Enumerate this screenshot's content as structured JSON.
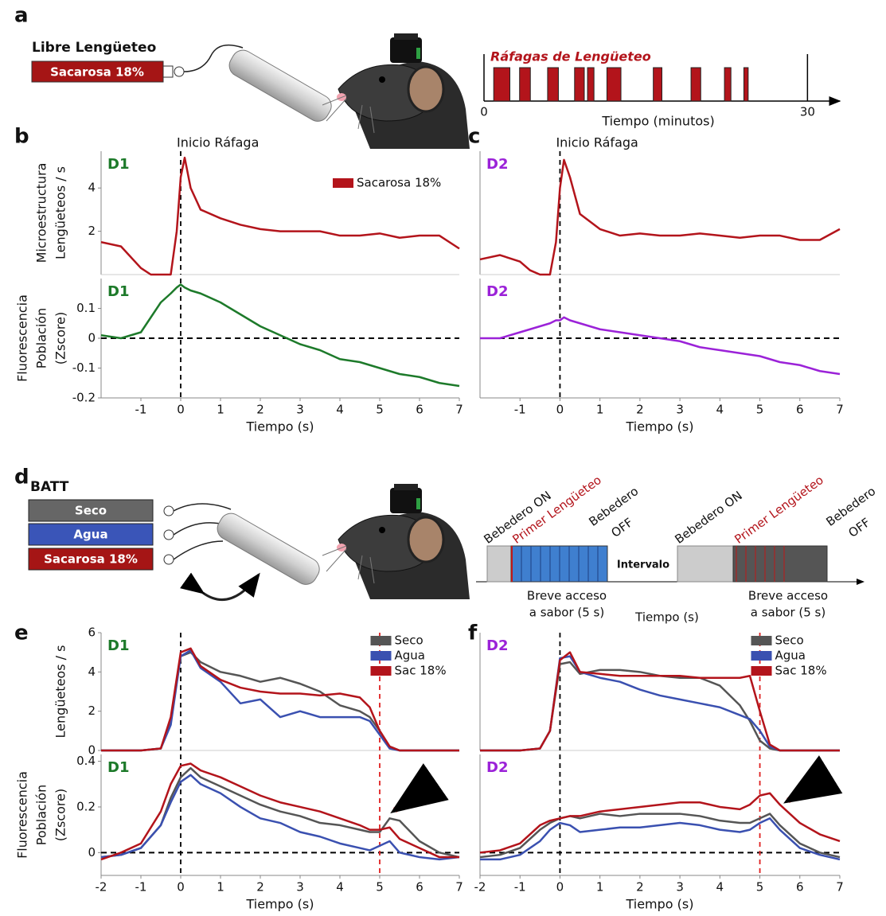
{
  "panel_labels": [
    "a",
    "b",
    "c",
    "d",
    "e",
    "f"
  ],
  "diagram_a": {
    "title": "Libre Lengüeteo",
    "bottle": "Sacarosa 18%"
  },
  "diagram_d": {
    "title": "BATT",
    "bottles": [
      "Seco",
      "Agua",
      "Sacarosa 18%"
    ],
    "interval": "Intervalo",
    "time_label": "Tiempo (s)",
    "trials": [
      {
        "on": "Bebedero ON",
        "first_lick": "Primer Lengüeteo",
        "off": [
          "Bebedero",
          "OFF"
        ],
        "access": [
          "Breve acceso",
          "a sabor (5 s)"
        ]
      },
      {
        "on": "Bebedero ON",
        "first_lick": "Primer Lengüeteo",
        "off": [
          "Bebedero",
          "OFF"
        ],
        "access": [
          "Breve acceso",
          "a sabor (5 s)"
        ]
      }
    ]
  },
  "chart_data": [
    {
      "type": "raster",
      "title": "Ráfagas de Lengüeteo",
      "xlabel": "Tiempo (minutos)",
      "xlim": [
        0,
        33
      ],
      "xticks": [
        0,
        30
      ],
      "color": "#b3141b",
      "bursts": [
        [
          0.9,
          2.4
        ],
        [
          3.3,
          4.3
        ],
        [
          5.9,
          6.9
        ],
        [
          8.4,
          9.3
        ],
        [
          9.6,
          10.2
        ],
        [
          11.4,
          12.7
        ],
        [
          15.7,
          16.5
        ],
        [
          19.2,
          20.1
        ],
        [
          22.3,
          22.9
        ],
        [
          24.1,
          24.5
        ]
      ]
    },
    {
      "type": "line",
      "tag": "D1",
      "tag_color": "#1d7a2a",
      "annotation": {
        "text": "Inicio Ráfaga",
        "x": 0
      },
      "ylabel": [
        "Microestructura",
        "Lengüeteos / s"
      ],
      "xlim": [
        -2,
        7
      ],
      "ylim": [
        0,
        5.7
      ],
      "yticks": [
        2,
        4
      ],
      "vlines": [
        {
          "x": 0,
          "color": "#000000"
        }
      ],
      "legend": "upper right",
      "x": [
        -2,
        -1.5,
        -1,
        -0.75,
        -0.5,
        -0.25,
        -0.1,
        0,
        0.1,
        0.25,
        0.5,
        1,
        1.5,
        2,
        2.5,
        3,
        3.5,
        4,
        4.5,
        5,
        5.5,
        6,
        6.5,
        7
      ],
      "series": [
        {
          "name": "Sacarosa 18%",
          "color": "#b3141b",
          "values": [
            1.5,
            1.3,
            0.3,
            0,
            0,
            0,
            2.0,
            4.5,
            5.4,
            4.0,
            3.0,
            2.6,
            2.3,
            2.1,
            2.0,
            2.0,
            2.0,
            1.8,
            1.8,
            1.9,
            1.7,
            1.8,
            1.8,
            1.2
          ]
        }
      ]
    },
    {
      "type": "line",
      "tag": "D1",
      "tag_color": "#1d7a2a",
      "ylabel": [
        "Fluorescencia",
        "Población",
        "(Zscore)"
      ],
      "xlabel": "Tiempo (s)",
      "xlim": [
        -2,
        7
      ],
      "ylim": [
        -0.2,
        0.2
      ],
      "yticks": [
        -0.2,
        -0.1,
        0,
        0.1
      ],
      "xticks": [
        -1,
        0,
        1,
        2,
        3,
        4,
        5,
        6,
        7
      ],
      "hlines": [
        0
      ],
      "vlines": [
        {
          "x": 0,
          "color": "#000000"
        }
      ],
      "x": [
        -2,
        -1.5,
        -1,
        -0.75,
        -0.5,
        -0.25,
        -0.1,
        0,
        0.1,
        0.25,
        0.5,
        1,
        1.5,
        2,
        2.5,
        3,
        3.5,
        4,
        4.5,
        5,
        5.5,
        6,
        6.5,
        7
      ],
      "color": "#1d7a2a",
      "values": [
        0.01,
        0.0,
        0.02,
        0.07,
        0.12,
        0.15,
        0.17,
        0.18,
        0.17,
        0.16,
        0.15,
        0.12,
        0.08,
        0.04,
        0.01,
        -0.02,
        -0.04,
        -0.07,
        -0.08,
        -0.1,
        -0.12,
        -0.13,
        -0.15,
        -0.16
      ]
    },
    {
      "type": "line",
      "tag": "D2",
      "tag_color": "#9b22d8",
      "annotation": {
        "text": "Inicio Ráfaga",
        "x": 0
      },
      "xlim": [
        -2,
        7
      ],
      "ylim": [
        0,
        5.7
      ],
      "vlines": [
        {
          "x": 0,
          "color": "#000000"
        }
      ],
      "x": [
        -2,
        -1.5,
        -1,
        -0.75,
        -0.5,
        -0.25,
        -0.1,
        0,
        0.1,
        0.25,
        0.5,
        1,
        1.5,
        2,
        2.5,
        3,
        3.5,
        4,
        4.5,
        5,
        5.5,
        6,
        6.5,
        7
      ],
      "color": "#b3141b",
      "values": [
        0.7,
        0.9,
        0.6,
        0.2,
        0,
        0,
        1.5,
        4.0,
        5.3,
        4.5,
        2.8,
        2.1,
        1.8,
        1.9,
        1.8,
        1.8,
        1.9,
        1.8,
        1.7,
        1.8,
        1.8,
        1.6,
        1.6,
        2.1
      ]
    },
    {
      "type": "line",
      "tag": "D2",
      "tag_color": "#9b22d8",
      "xlabel": "Tiempo (s)",
      "xlim": [
        -2,
        7
      ],
      "ylim": [
        -0.2,
        0.2
      ],
      "xticks": [
        -1,
        0,
        1,
        2,
        3,
        4,
        5,
        6,
        7
      ],
      "hlines": [
        0
      ],
      "vlines": [
        {
          "x": 0,
          "color": "#000000"
        }
      ],
      "x": [
        -2,
        -1.5,
        -1,
        -0.75,
        -0.5,
        -0.25,
        -0.1,
        0,
        0.1,
        0.25,
        0.5,
        1,
        1.5,
        2,
        2.5,
        3,
        3.5,
        4,
        4.5,
        5,
        5.5,
        6,
        6.5,
        7
      ],
      "color": "#9b22d8",
      "values": [
        0,
        0,
        0.02,
        0.03,
        0.04,
        0.05,
        0.06,
        0.06,
        0.07,
        0.06,
        0.05,
        0.03,
        0.02,
        0.01,
        0,
        -0.01,
        -0.03,
        -0.04,
        -0.05,
        -0.06,
        -0.08,
        -0.09,
        -0.11,
        -0.12
      ]
    },
    {
      "type": "line",
      "tag": "D1",
      "tag_color": "#1d7a2a",
      "ylabel": [
        "Lengüeteos / s"
      ],
      "xlim": [
        -2,
        7
      ],
      "ylim": [
        0,
        6
      ],
      "yticks": [
        0,
        2,
        4,
        6
      ],
      "vlines": [
        {
          "x": 0,
          "color": "#000000"
        },
        {
          "x": 5,
          "color": "#e02020"
        }
      ],
      "legend": "upper right",
      "x": [
        -2,
        -1.5,
        -1,
        -0.5,
        -0.25,
        0,
        0.25,
        0.5,
        1,
        1.5,
        2,
        2.5,
        3,
        3.5,
        4,
        4.5,
        4.75,
        5,
        5.25,
        5.5,
        6,
        6.5,
        7
      ],
      "series": [
        {
          "name": "Seco",
          "color": "#555555",
          "values": [
            0,
            0,
            0,
            0.1,
            1.5,
            4.8,
            5.0,
            4.5,
            4.0,
            3.8,
            3.5,
            3.7,
            3.4,
            3.0,
            2.3,
            2.0,
            1.7,
            1.0,
            0.2,
            0,
            0,
            0,
            0
          ]
        },
        {
          "name": "Agua",
          "color": "#3a50b0",
          "values": [
            0,
            0,
            0,
            0.1,
            1.3,
            4.8,
            5.1,
            4.2,
            3.5,
            2.4,
            2.6,
            1.7,
            2.0,
            1.7,
            1.7,
            1.7,
            1.5,
            0.8,
            0.1,
            0,
            0,
            0,
            0
          ]
        },
        {
          "name": "Sac 18%",
          "color": "#b3141b",
          "values": [
            0,
            0,
            0,
            0.1,
            1.7,
            5.0,
            5.2,
            4.3,
            3.6,
            3.2,
            3.0,
            2.9,
            2.9,
            2.8,
            2.9,
            2.7,
            2.2,
            1.0,
            0.2,
            0,
            0,
            0,
            0
          ]
        }
      ]
    },
    {
      "type": "line",
      "tag": "D1",
      "tag_color": "#1d7a2a",
      "ylabel": [
        "Fluorescencia",
        "Población",
        "(Zscore)"
      ],
      "xlabel": "Tiempo (s)",
      "xlim": [
        -2,
        7
      ],
      "ylim": [
        -0.1,
        0.43
      ],
      "yticks": [
        0,
        0.2,
        0.4
      ],
      "xticks": [
        -2,
        -1,
        0,
        1,
        2,
        3,
        4,
        5,
        6,
        7
      ],
      "hlines": [
        0
      ],
      "vlines": [
        {
          "x": 0,
          "color": "#000000"
        },
        {
          "x": 5,
          "color": "#e02020"
        }
      ],
      "x": [
        -2,
        -1.5,
        -1,
        -0.5,
        -0.25,
        0,
        0.25,
        0.5,
        1,
        1.5,
        2,
        2.5,
        3,
        3.5,
        4,
        4.5,
        4.75,
        5,
        5.25,
        5.5,
        6,
        6.5,
        7
      ],
      "series": [
        {
          "color": "#555555",
          "values": [
            -0.02,
            -0.01,
            0.02,
            0.12,
            0.24,
            0.33,
            0.37,
            0.33,
            0.29,
            0.25,
            0.21,
            0.18,
            0.16,
            0.13,
            0.12,
            0.1,
            0.09,
            0.09,
            0.15,
            0.14,
            0.05,
            0.0,
            -0.02
          ]
        },
        {
          "color": "#3a50b0",
          "values": [
            -0.02,
            -0.01,
            0.02,
            0.12,
            0.22,
            0.31,
            0.34,
            0.3,
            0.26,
            0.2,
            0.15,
            0.13,
            0.09,
            0.07,
            0.04,
            0.02,
            0.01,
            0.03,
            0.05,
            0.0,
            -0.02,
            -0.03,
            -0.02
          ]
        },
        {
          "color": "#b3141b",
          "values": [
            -0.03,
            0.0,
            0.04,
            0.18,
            0.3,
            0.38,
            0.39,
            0.36,
            0.33,
            0.29,
            0.25,
            0.22,
            0.2,
            0.18,
            0.15,
            0.12,
            0.1,
            0.1,
            0.11,
            0.06,
            0.02,
            -0.02,
            -0.02
          ]
        }
      ]
    },
    {
      "type": "line",
      "tag": "D2",
      "tag_color": "#9b22d8",
      "xlim": [
        -2,
        7
      ],
      "ylim": [
        0,
        6
      ],
      "vlines": [
        {
          "x": 0,
          "color": "#000000"
        },
        {
          "x": 5,
          "color": "#e02020"
        }
      ],
      "legend": "upper right",
      "x": [
        -2,
        -1.5,
        -1,
        -0.5,
        -0.25,
        0,
        0.25,
        0.5,
        1,
        1.5,
        2,
        2.5,
        3,
        3.5,
        4,
        4.5,
        4.75,
        5,
        5.25,
        5.5,
        6,
        6.5,
        7
      ],
      "series": [
        {
          "name": "Seco",
          "color": "#555555",
          "values": [
            0,
            0,
            0,
            0.1,
            1.0,
            4.4,
            4.5,
            3.9,
            4.1,
            4.1,
            4.0,
            3.8,
            3.7,
            3.7,
            3.3,
            2.3,
            1.5,
            0.5,
            0.1,
            0,
            0,
            0,
            0
          ]
        },
        {
          "name": "Agua",
          "color": "#3a50b0",
          "values": [
            0,
            0,
            0,
            0.1,
            1.0,
            4.7,
            4.8,
            4.0,
            3.7,
            3.5,
            3.1,
            2.8,
            2.6,
            2.4,
            2.2,
            1.8,
            1.6,
            1.0,
            0.2,
            0,
            0,
            0,
            0
          ]
        },
        {
          "name": "Sac 18%",
          "color": "#b3141b",
          "values": [
            0,
            0,
            0,
            0.1,
            1.0,
            4.6,
            5.0,
            4.0,
            3.9,
            3.8,
            3.8,
            3.8,
            3.8,
            3.7,
            3.7,
            3.7,
            3.8,
            2.0,
            0.3,
            0,
            0,
            0,
            0
          ]
        }
      ]
    },
    {
      "type": "line",
      "tag": "D2",
      "tag_color": "#9b22d8",
      "xlabel": "Tiempo (s)",
      "xlim": [
        -2,
        7
      ],
      "ylim": [
        -0.1,
        0.43
      ],
      "xticks": [
        -2,
        -1,
        0,
        1,
        2,
        3,
        4,
        5,
        6,
        7
      ],
      "hlines": [
        0
      ],
      "vlines": [
        {
          "x": 0,
          "color": "#000000"
        },
        {
          "x": 5,
          "color": "#e02020"
        }
      ],
      "x": [
        -2,
        -1.5,
        -1,
        -0.5,
        -0.25,
        0,
        0.25,
        0.5,
        1,
        1.5,
        2,
        2.5,
        3,
        3.5,
        4,
        4.5,
        4.75,
        5,
        5.25,
        5.5,
        6,
        6.5,
        7
      ],
      "series": [
        {
          "color": "#555555",
          "values": [
            -0.02,
            -0.01,
            0.02,
            0.1,
            0.13,
            0.15,
            0.16,
            0.15,
            0.17,
            0.16,
            0.17,
            0.17,
            0.17,
            0.16,
            0.14,
            0.13,
            0.13,
            0.15,
            0.17,
            0.12,
            0.04,
            0.0,
            -0.02
          ]
        },
        {
          "color": "#3a50b0",
          "values": [
            -0.03,
            -0.03,
            -0.01,
            0.05,
            0.1,
            0.13,
            0.12,
            0.09,
            0.1,
            0.11,
            0.11,
            0.12,
            0.13,
            0.12,
            0.1,
            0.09,
            0.1,
            0.13,
            0.15,
            0.1,
            0.02,
            -0.01,
            -0.03
          ]
        },
        {
          "color": "#b3141b",
          "values": [
            0.0,
            0.01,
            0.04,
            0.12,
            0.14,
            0.15,
            0.16,
            0.16,
            0.18,
            0.19,
            0.2,
            0.21,
            0.22,
            0.22,
            0.2,
            0.19,
            0.21,
            0.25,
            0.26,
            0.21,
            0.13,
            0.08,
            0.05
          ]
        }
      ]
    }
  ]
}
